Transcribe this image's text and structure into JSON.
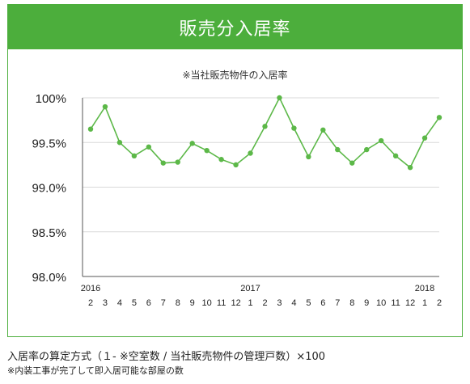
{
  "header": {
    "title": "販売分入居率"
  },
  "chart_data": {
    "type": "line",
    "subtitle": "※当社販売物件の入居率",
    "ylim": [
      98.0,
      100.0
    ],
    "y_ticks": [
      98.0,
      98.5,
      99.0,
      99.5,
      100.0
    ],
    "y_tick_labels": [
      "98.0%",
      "98.5%",
      "99.0%",
      "99.5%",
      "100%"
    ],
    "x_month_labels": [
      "2",
      "3",
      "4",
      "5",
      "6",
      "7",
      "8",
      "9",
      "10",
      "11",
      "12",
      "1",
      "2",
      "3",
      "4",
      "5",
      "6",
      "7",
      "8",
      "9",
      "10",
      "11",
      "12",
      "1",
      "2"
    ],
    "x_year_labels": [
      {
        "label": "2016",
        "index": 0
      },
      {
        "label": "2017",
        "index": 11
      },
      {
        "label": "2018",
        "index": 23
      }
    ],
    "values": [
      99.65,
      99.9,
      99.5,
      99.35,
      99.45,
      99.27,
      99.28,
      99.49,
      99.41,
      99.31,
      99.25,
      99.38,
      99.68,
      100.0,
      99.66,
      99.34,
      99.64,
      99.42,
      99.27,
      99.42,
      99.52,
      99.35,
      99.22,
      99.55,
      99.78
    ],
    "grid": "horizontal",
    "line_color": "#5cb848",
    "grid_color": "#d9d9d9"
  },
  "footer": {
    "formula": "入居率の算定方式（１- ※空室数 / 当社販売物件の管理戸数）×100",
    "note": "※内装工事が完了して即入居可能な部屋の数"
  },
  "colors": {
    "accent": "#4cae3c"
  }
}
